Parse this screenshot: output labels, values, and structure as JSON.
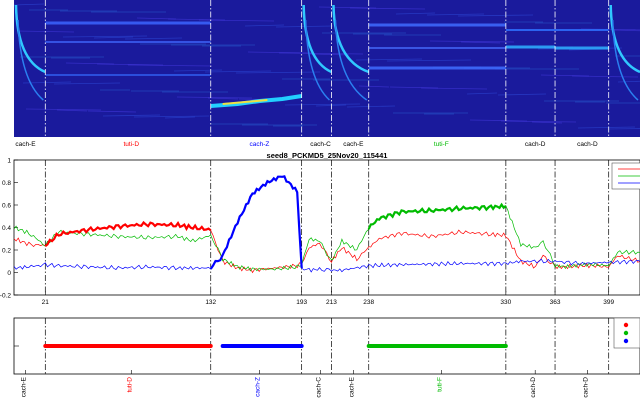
{
  "colors": {
    "red": "#ff0000",
    "green": "#00bb00",
    "blue": "#0000ff",
    "spectrogram_bg": "#1a1a9c"
  },
  "chart_data": [
    {
      "type": "heatmap",
      "panel": "spectrogram",
      "x_domain": [
        0,
        420
      ],
      "segment_labels": [
        {
          "text": "cach-E",
          "x": 5,
          "color": "#000000"
        },
        {
          "text": "tuti-D",
          "x": 76,
          "color": "#ff0000"
        },
        {
          "text": "cach-Z",
          "x": 162,
          "color": "#0000ff"
        },
        {
          "text": "cach-C",
          "x": 203,
          "color": "#000000"
        },
        {
          "text": "cach-E",
          "x": 225,
          "color": "#000000"
        },
        {
          "text": "tuti-F",
          "x": 284,
          "color": "#00bb00"
        },
        {
          "text": "cach-D",
          "x": 347,
          "color": "#000000"
        },
        {
          "text": "cach-D",
          "x": 382,
          "color": "#000000"
        }
      ],
      "boundaries": [
        21,
        132,
        193,
        213,
        238,
        330,
        363,
        399
      ]
    },
    {
      "type": "line",
      "panel": "similarity",
      "title": "seed8_PCKMD5_25Nov20_115441",
      "xlim": [
        0,
        420
      ],
      "ylim": [
        -0.2,
        1.0
      ],
      "yticks": [
        -0.2,
        0,
        0.2,
        0.4,
        0.6,
        0.8,
        1
      ],
      "xticks": [
        21,
        132,
        193,
        213,
        238,
        330,
        363,
        399
      ],
      "series": [
        {
          "color": "#ff0000",
          "x": [
            0,
            10,
            21,
            30,
            50,
            70,
            90,
            110,
            120,
            132,
            140,
            150,
            160,
            175,
            190,
            193,
            198,
            205,
            213,
            220,
            230,
            238,
            245,
            260,
            280,
            300,
            320,
            330,
            340,
            350,
            355,
            363,
            370,
            380,
            390,
            399,
            405,
            420
          ],
          "y": [
            0.3,
            0.25,
            0.24,
            0.34,
            0.38,
            0.41,
            0.43,
            0.42,
            0.4,
            0.38,
            0.1,
            0.04,
            0.02,
            0.04,
            0.06,
            0.08,
            0.22,
            0.26,
            0.1,
            0.22,
            0.12,
            0.22,
            0.3,
            0.35,
            0.32,
            0.36,
            0.34,
            0.33,
            0.1,
            0.05,
            0.15,
            0.05,
            0.05,
            0.06,
            0.06,
            0.05,
            0.15,
            0.1
          ]
        },
        {
          "color": "#00bb00",
          "x": [
            0,
            10,
            21,
            30,
            50,
            70,
            90,
            110,
            120,
            132,
            140,
            150,
            160,
            175,
            190,
            193,
            198,
            205,
            213,
            220,
            230,
            238,
            245,
            260,
            280,
            300,
            320,
            330,
            340,
            350,
            355,
            363,
            370,
            380,
            390,
            399,
            405,
            420
          ],
          "y": [
            0.4,
            0.35,
            0.24,
            0.36,
            0.34,
            0.32,
            0.31,
            0.32,
            0.28,
            0.33,
            0.12,
            0.05,
            0.03,
            0.03,
            0.05,
            0.07,
            0.3,
            0.28,
            0.1,
            0.28,
            0.2,
            0.4,
            0.48,
            0.54,
            0.55,
            0.57,
            0.58,
            0.59,
            0.25,
            0.22,
            0.28,
            0.06,
            0.05,
            0.07,
            0.07,
            0.06,
            0.18,
            0.18
          ]
        },
        {
          "color": "#0000ff",
          "x": [
            0,
            10,
            21,
            30,
            50,
            70,
            90,
            110,
            120,
            132,
            140,
            150,
            160,
            170,
            180,
            190,
            193,
            198,
            205,
            213,
            220,
            238,
            260,
            300,
            330,
            340,
            363,
            380,
            399,
            420
          ],
          "y": [
            0.04,
            0.05,
            0.07,
            0.06,
            0.05,
            0.04,
            0.05,
            0.04,
            0.04,
            0.04,
            0.15,
            0.45,
            0.7,
            0.8,
            0.86,
            0.72,
            0.03,
            0.02,
            0.03,
            0.02,
            0.02,
            0.06,
            0.07,
            0.08,
            0.08,
            0.1,
            0.1,
            0.08,
            0.09,
            0.1
          ]
        }
      ],
      "highlight_segments": [
        {
          "series": 0,
          "from": 21,
          "to": 132
        },
        {
          "series": 2,
          "from": 132,
          "to": 193
        },
        {
          "series": 1,
          "from": 238,
          "to": 330
        }
      ],
      "legend": {
        "placement": "top-right",
        "entries": [
          "",
          "",
          ""
        ]
      }
    },
    {
      "type": "scatter",
      "panel": "segment-labels",
      "xlim": [
        0,
        420
      ],
      "bars": [
        {
          "from": 21,
          "to": 132,
          "color": "#ff0000"
        },
        {
          "from": 140,
          "to": 193,
          "color": "#0000ff"
        },
        {
          "from": 238,
          "to": 330,
          "color": "#00bb00"
        }
      ],
      "boundaries": [
        21,
        132,
        193,
        213,
        238,
        330,
        363,
        399
      ],
      "xtick_labels": [
        {
          "text": "cach-E",
          "x": 5,
          "color": "#000000"
        },
        {
          "text": "tuti-D",
          "x": 76,
          "color": "#ff0000"
        },
        {
          "text": "cach-Z",
          "x": 162,
          "color": "#0000ff"
        },
        {
          "text": "cach-C",
          "x": 203,
          "color": "#000000"
        },
        {
          "text": "cach-E",
          "x": 225,
          "color": "#000000"
        },
        {
          "text": "tuti-F",
          "x": 284,
          "color": "#00bb00"
        },
        {
          "text": "cach-D",
          "x": 347,
          "color": "#000000"
        },
        {
          "text": "cach-D",
          "x": 382,
          "color": "#000000"
        }
      ],
      "legend": {
        "placement": "top-right",
        "markers": [
          "#ff0000",
          "#00bb00",
          "#0000ff"
        ]
      }
    }
  ]
}
